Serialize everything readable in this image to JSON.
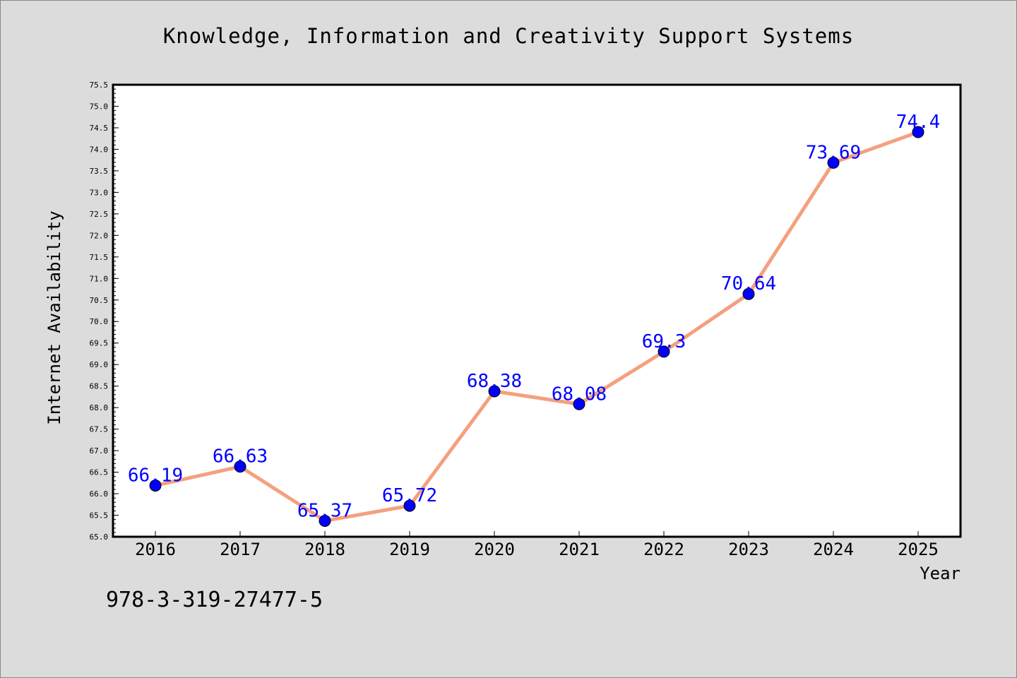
{
  "title": "Knowledge, Information and Creativity Support Systems",
  "footer_text": "978-3-319-27477-5",
  "chart_data": {
    "type": "line",
    "title": "Knowledge, Information and Creativity Support Systems",
    "xlabel": "Year",
    "ylabel": "Internet Availability",
    "categories": [
      "2016",
      "2017",
      "2018",
      "2019",
      "2020",
      "2021",
      "2022",
      "2023",
      "2024",
      "2025"
    ],
    "series": [
      {
        "values": [
          66.19,
          66.63,
          65.37,
          65.72,
          68.38,
          68.08,
          69.3,
          70.64,
          73.69,
          74.4
        ],
        "labels": [
          "66.19",
          "66.63",
          "65.37",
          "65.72",
          "68.38",
          "68.08",
          "69.3",
          "70.64",
          "73.69",
          "74.4"
        ]
      }
    ],
    "ylim": [
      65.0,
      75.5
    ],
    "yticks": [
      "65.0",
      "65.5",
      "66.0",
      "66.5",
      "67.0",
      "67.5",
      "68.0",
      "68.5",
      "69.0",
      "69.5",
      "70.0",
      "70.5",
      "71.0",
      "71.5",
      "72.0",
      "72.5",
      "73.0",
      "73.5",
      "74.0",
      "74.5",
      "75.0",
      "75.5"
    ],
    "grid": false,
    "colors": {
      "line": "#f4a07e",
      "marker": "#0000ff",
      "data_label": "#0000ff",
      "plot_background": "#ffffff",
      "figure_background": "#dcdcdc"
    }
  }
}
